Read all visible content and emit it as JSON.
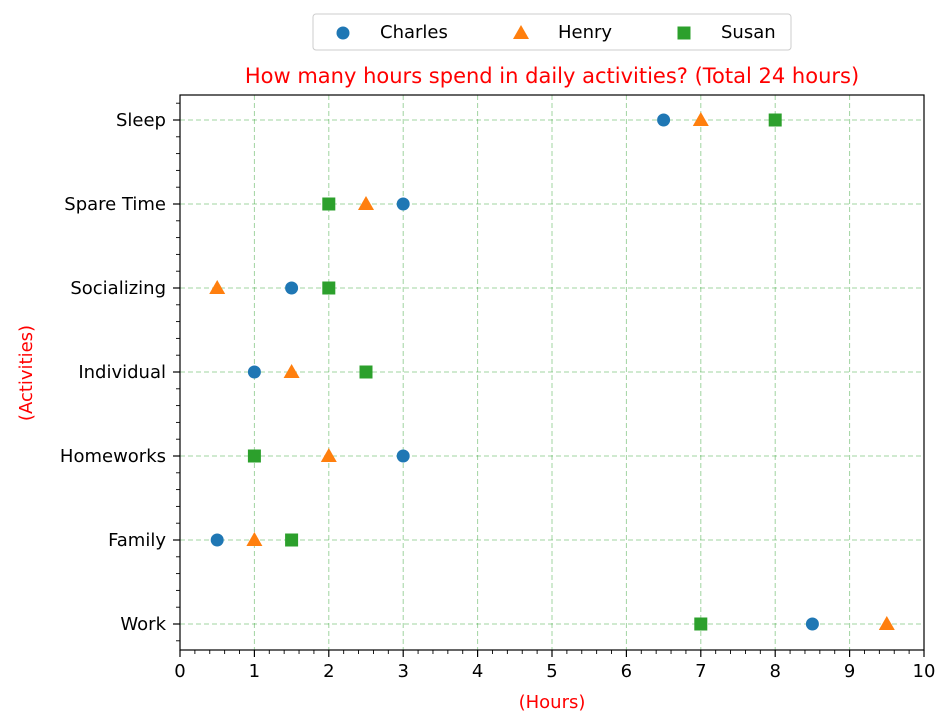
{
  "chart_data": {
    "type": "scatter",
    "title": "How many hours spend in daily activities? (Total 24 hours)",
    "xlabel": "(Hours)",
    "ylabel": "(Activities)",
    "xlim": [
      0,
      10
    ],
    "xticks": [
      "0",
      "1",
      "2",
      "3",
      "4",
      "5",
      "6",
      "7",
      "8",
      "9",
      "10"
    ],
    "categories": [
      "Work",
      "Family",
      "Homeworks",
      "Individual",
      "Socializing",
      "Spare Time",
      "Sleep"
    ],
    "series": [
      {
        "name": "Charles",
        "marker": "circle",
        "color": "#1f77b4",
        "values": [
          8.5,
          0.5,
          3.0,
          1.0,
          1.5,
          3.0,
          6.5
        ]
      },
      {
        "name": "Henry",
        "marker": "triangle",
        "color": "#ff7f0e",
        "values": [
          9.5,
          1.0,
          2.0,
          1.5,
          0.5,
          2.5,
          7.0
        ]
      },
      {
        "name": "Susan",
        "marker": "square",
        "color": "#2ca02c",
        "values": [
          7.0,
          1.5,
          1.0,
          2.5,
          2.0,
          2.0,
          8.0
        ]
      }
    ],
    "grid": true,
    "legend_position": "top-center",
    "title_color": "#ff0000",
    "axis_label_color": "#ff0000",
    "grid_color": "#2ca02c"
  }
}
